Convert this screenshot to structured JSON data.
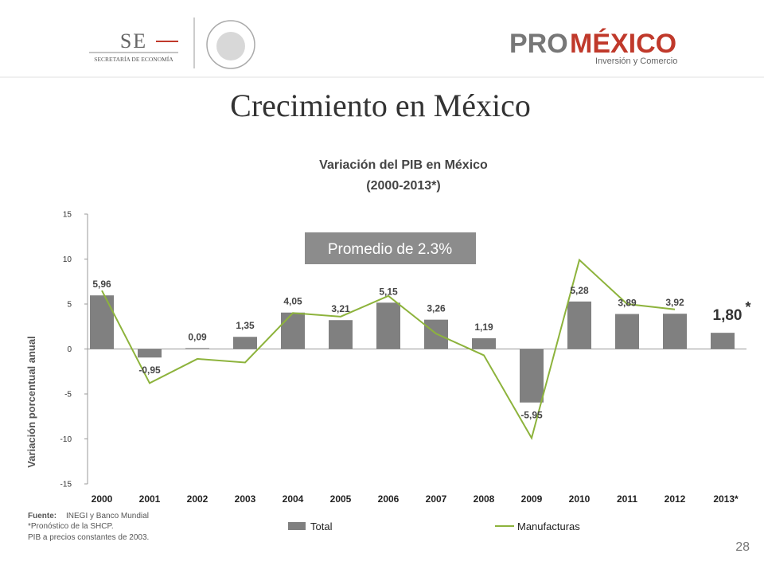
{
  "header": {
    "se_logo": "SE",
    "se_name": "SECRETARÍA DE ECONOMÍA",
    "pro_logo": "PRO",
    "mexico_logo": "MÉXICO",
    "pro_tagline": "Inversión y Comercio"
  },
  "slide_title": "Crecimiento en México",
  "chart_data": {
    "type": "bar",
    "title": "Variación del  PIB en México",
    "subtitle": "(2000-2013*)",
    "y_label": "Variación porcentual anual",
    "annotation": "Promedio de 2.3%",
    "forecast_mark": "*",
    "categories": [
      "2000",
      "2001",
      "2002",
      "2003",
      "2004",
      "2005",
      "2006",
      "2007",
      "2008",
      "2009",
      "2010",
      "2011",
      "2012",
      "2013*"
    ],
    "series": [
      {
        "name": "Total",
        "type": "bar",
        "color": "#808080",
        "values": [
          5.96,
          -0.95,
          0.09,
          1.35,
          4.05,
          3.21,
          5.15,
          3.26,
          1.19,
          -5.95,
          5.28,
          3.89,
          3.92,
          1.8
        ],
        "value_labels": [
          "5,96",
          "-0,95",
          "0,09",
          "1,35",
          "4,05",
          "3,21",
          "5,15",
          "3,26",
          "1,19",
          "-5,95",
          "5,28",
          "3,89",
          "3,92",
          "1,80"
        ]
      },
      {
        "name": "Manufacturas",
        "type": "line",
        "color": "#8db33c",
        "values": [
          6.5,
          -3.8,
          -1.1,
          -1.5,
          4.0,
          3.6,
          5.9,
          1.7,
          -0.7,
          -9.9,
          9.9,
          5.0,
          4.4,
          null
        ]
      }
    ],
    "ylim": [
      -15,
      15
    ],
    "yticks": [
      -15,
      -10,
      -5,
      0,
      5,
      10,
      15
    ],
    "legend": "bottom"
  },
  "footer": {
    "source_label": "Fuente:",
    "source": "INEGI y Banco Mundial",
    "notes": [
      "*Pronóstico de la SHCP.",
      "PIB a precios constantes de 2003."
    ],
    "page_number": "28"
  }
}
